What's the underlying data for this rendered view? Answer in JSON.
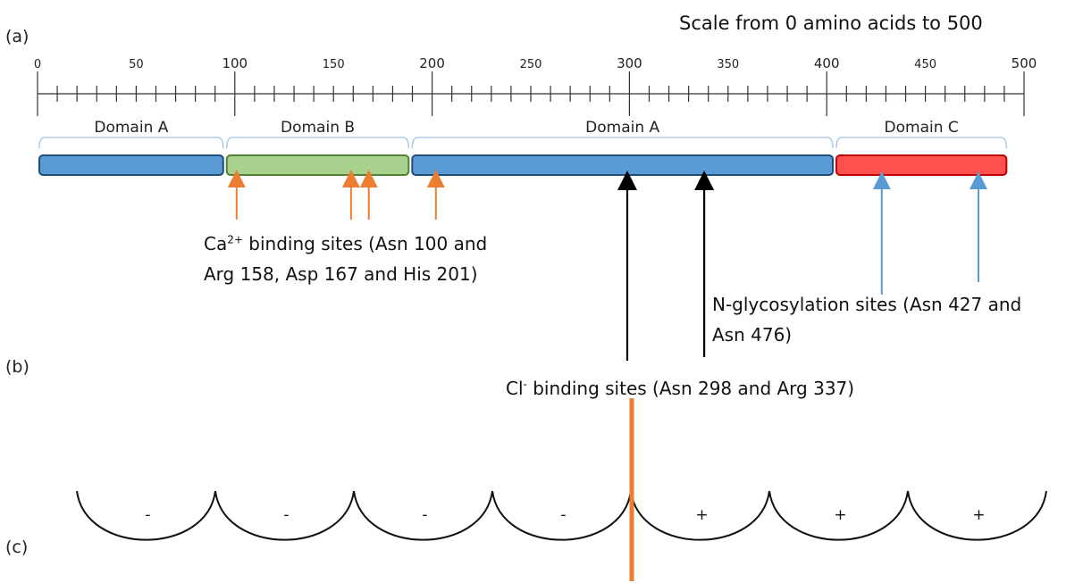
{
  "panel_labels": {
    "a": "(a)",
    "b": "(b)",
    "c": "(c)"
  },
  "scale_title": "Scale from 0 amino acids to 500",
  "scale": {
    "min": 0,
    "max": 500,
    "tick_labels": [
      "0",
      "50",
      "100",
      "150",
      "200",
      "250",
      "300",
      "350",
      "400",
      "450",
      "500"
    ],
    "major_tick_labels": [
      "100",
      "200",
      "300",
      "400",
      "500"
    ]
  },
  "domains": [
    {
      "label": "Domain A",
      "start": 0,
      "end": 95,
      "color": "#5b9bd5",
      "border": "#1f4e79"
    },
    {
      "label": "Domain B",
      "start": 95,
      "end": 189,
      "color": "#a9d18e",
      "border": "#548235"
    },
    {
      "label": "Domain A",
      "start": 189,
      "end": 404,
      "color": "#5b9bd5",
      "border": "#1f4e79"
    },
    {
      "label": "Domain C",
      "start": 404,
      "end": 492,
      "color": "#ff5050",
      "border": "#c00000"
    }
  ],
  "ca_sites": {
    "positions": [
      100,
      158,
      167,
      201
    ],
    "color": "#ed7d31",
    "label_prefix": "Ca",
    "label_sup": "2+",
    "label_rest": " binding sites (Asn 100 and",
    "label_line2": "Arg 158, Asp 167 and His 201)"
  },
  "cl_sites": {
    "positions": [
      298,
      337
    ],
    "color": "#000000",
    "label_prefix": "Cl",
    "label_sup": "-",
    "label_rest": " binding sites (Asn 298 and Arg 337)"
  },
  "glyco_sites": {
    "positions": [
      427,
      476
    ],
    "color": "#5b9bd5",
    "label_line1": "N-glycosylation sites (Asn 427 and",
    "label_line2": "Asn 476)"
  },
  "panel_c": {
    "signs": [
      "-",
      "-",
      "-",
      "-",
      "+",
      "+",
      "+"
    ],
    "divider_color": "#ed7d31"
  }
}
